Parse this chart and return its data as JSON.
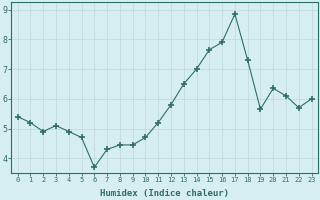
{
  "x": [
    0,
    1,
    2,
    3,
    4,
    5,
    6,
    7,
    8,
    9,
    10,
    11,
    12,
    13,
    14,
    15,
    16,
    17,
    18,
    19,
    20,
    21,
    22,
    23
  ],
  "y": [
    5.4,
    5.2,
    4.9,
    5.1,
    4.9,
    4.7,
    3.7,
    4.3,
    4.45,
    4.45,
    4.7,
    5.2,
    5.8,
    6.5,
    7.0,
    7.65,
    7.9,
    8.85,
    7.3,
    5.65,
    6.35,
    6.1,
    5.7,
    6.0
  ],
  "line_color": "#2e7060",
  "marker": "+",
  "marker_size": 4,
  "marker_lw": 1.2,
  "bg_color": "#d6eef2",
  "grid_color": "#c0d8dc",
  "xlabel": "Humidex (Indice chaleur)",
  "xlim": [
    -0.5,
    23.5
  ],
  "ylim": [
    3.5,
    9.25
  ],
  "yticks": [
    4,
    5,
    6,
    7,
    8,
    9
  ],
  "xticks": [
    0,
    1,
    2,
    3,
    4,
    5,
    6,
    7,
    8,
    9,
    10,
    11,
    12,
    13,
    14,
    15,
    16,
    17,
    18,
    19,
    20,
    21,
    22,
    23
  ],
  "xtick_labels": [
    "0",
    "1",
    "2",
    "3",
    "4",
    "5",
    "6",
    "7",
    "8",
    "9",
    "10",
    "11",
    "12",
    "13",
    "14",
    "15",
    "16",
    "17",
    "18",
    "19",
    "20",
    "21",
    "22",
    "23"
  ],
  "tick_color": "#2e7060",
  "label_color": "#2e7060",
  "axis_color": "#2e7060",
  "tick_fontsize": 5.0,
  "ytick_fontsize": 6.0,
  "xlabel_fontsize": 6.5
}
